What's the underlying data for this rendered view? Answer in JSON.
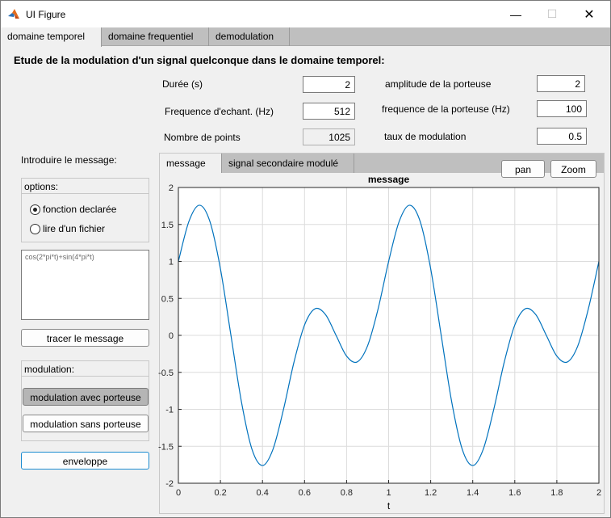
{
  "window": {
    "title": "UI Figure",
    "minimize": "—",
    "maximize": "☐",
    "close": "✕"
  },
  "tabs": [
    {
      "label": "domaine temporel",
      "active": true
    },
    {
      "label": "domaine frequentiel",
      "active": false
    },
    {
      "label": "demodulation",
      "active": false
    }
  ],
  "heading": "Etude de la modulation d'un signal quelconque dans le domaine temporel:",
  "params": {
    "duree": {
      "label": "Durée (s)",
      "value": "2"
    },
    "freq_echant": {
      "label": "Frequence d'echant. (Hz)",
      "value": "512"
    },
    "nb_points": {
      "label": "Nombre de points",
      "value": "1025"
    },
    "amplitude_porteuse": {
      "label": "amplitude de la porteuse",
      "value": "2"
    },
    "freq_porteuse": {
      "label": "frequence de la porteuse (Hz)",
      "value": "100"
    },
    "taux_modulation": {
      "label": "taux de modulation",
      "value": "0.5"
    }
  },
  "sidebar": {
    "intro_label": "Introduire le message:",
    "options": {
      "title": "options:",
      "items": [
        {
          "label": "fonction declarée",
          "selected": true
        },
        {
          "label": "lire d'un fichier",
          "selected": false
        }
      ]
    },
    "message_expression": "cos(2*pi*t)+sin(4*pi*t)",
    "tracer_button": "tracer le message",
    "modulation": {
      "title": "modulation:",
      "avec_porteuse": "modulation avec porteuse",
      "sans_porteuse": "modulation sans porteuse"
    },
    "enveloppe_button": "enveloppe"
  },
  "plot_tabs": [
    {
      "label": "message",
      "active": true
    },
    {
      "label": "signal secondaire modulé",
      "active": false
    }
  ],
  "toolbar": {
    "pan": "pan",
    "zoom": "Zoom"
  },
  "chart_data": {
    "type": "line",
    "title": "message",
    "xlabel": "t",
    "ylabel": "",
    "xlim": [
      0,
      2
    ],
    "ylim": [
      -2,
      2
    ],
    "xticks": [
      "0",
      "0.2",
      "0.4",
      "0.6",
      "0.8",
      "1",
      "1.2",
      "1.4",
      "1.6",
      "1.8",
      "2"
    ],
    "yticks": [
      "-2",
      "-1.5",
      "-1",
      "-0.5",
      "0",
      "0.5",
      "1",
      "1.5",
      "2"
    ],
    "grid": true,
    "line_color": "#0072bd",
    "expression": "cos(2*pi*t)+sin(4*pi*t)",
    "x": [
      0,
      0.05,
      0.1,
      0.15,
      0.2,
      0.25,
      0.3,
      0.35,
      0.4,
      0.45,
      0.5,
      0.55,
      0.6,
      0.65,
      0.7,
      0.75,
      0.8,
      0.85,
      0.9,
      0.95,
      1,
      1.05,
      1.1,
      1.15,
      1.2,
      1.25,
      1.3,
      1.35,
      1.4,
      1.45,
      1.5,
      1.55,
      1.6,
      1.65,
      1.7,
      1.75,
      1.8,
      1.85,
      1.9,
      1.95,
      2
    ],
    "y": [
      1,
      1.54,
      1.76,
      1.54,
      0.9,
      0,
      -0.9,
      -1.54,
      -1.76,
      -1.54,
      -1,
      -0.36,
      0.14,
      0.36,
      0.28,
      0,
      -0.28,
      -0.36,
      -0.14,
      0.36,
      1,
      1.54,
      1.76,
      1.54,
      0.9,
      0,
      -0.9,
      -1.54,
      -1.76,
      -1.54,
      -1,
      -0.36,
      0.14,
      0.36,
      0.28,
      0,
      -0.28,
      -0.36,
      -0.14,
      0.36,
      1
    ]
  }
}
